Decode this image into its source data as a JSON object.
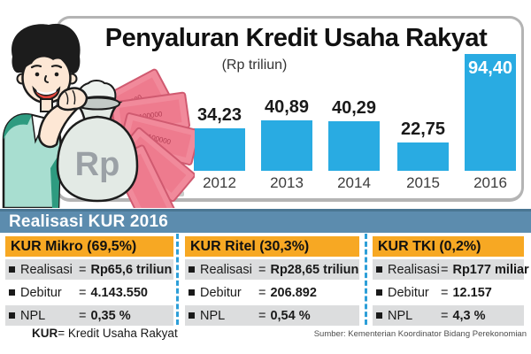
{
  "chart_data": {
    "type": "bar",
    "title": "Penyaluran Kredit Usaha Rakyat",
    "subtitle": "(Rp triliun)",
    "categories": [
      "2012",
      "2013",
      "2014",
      "2015",
      "2016"
    ],
    "values": [
      34.23,
      40.89,
      40.29,
      22.75,
      94.4
    ],
    "value_labels": [
      "34,23",
      "40,89",
      "40,29",
      "22,75",
      "94,40"
    ],
    "ylim": [
      0,
      94.4
    ],
    "grid": false,
    "legend": "none",
    "bar_color": "#29ABE2"
  },
  "banner": {
    "text": "Realisasi KUR 2016"
  },
  "equals": "=",
  "columns": [
    {
      "header": "KUR Mikro (69,5%)",
      "rows": [
        {
          "label": "Realisasi",
          "value": "Rp65,6 triliun"
        },
        {
          "label": "Debitur",
          "value": "4.143.550"
        },
        {
          "label": "NPL",
          "value": "0,35 %"
        }
      ]
    },
    {
      "header": "KUR Ritel (30,3%)",
      "rows": [
        {
          "label": "Realisasi",
          "value": "Rp28,65 triliun"
        },
        {
          "label": "Debitur",
          "value": "206.892"
        },
        {
          "label": "NPL",
          "value": "0,54 %"
        }
      ]
    },
    {
      "header": "KUR TKI (0,2%)",
      "rows": [
        {
          "label": "Realisasi",
          "value": "Rp177 miliar"
        },
        {
          "label": "Debitur",
          "value": "12.157"
        },
        {
          "label": "NPL",
          "value": "4,3 %"
        }
      ]
    }
  ],
  "footer": {
    "abbrev": "KUR",
    "abbrev_rest": "= Kredit Usaha Rakyat",
    "source": "Sumber: Kementerian Koordinator Bidang Perekonomian"
  },
  "illustration": {
    "bag_label": "Rp",
    "banknote_label": "100000"
  },
  "colors": {
    "bar": "#29ABE2",
    "banner_bg": "#5C8CAE",
    "banner_top": "#4A7693",
    "header_orange": "#F7A823",
    "row_gray": "#DCDDDE",
    "divider_blue": "#2D9FD8"
  }
}
